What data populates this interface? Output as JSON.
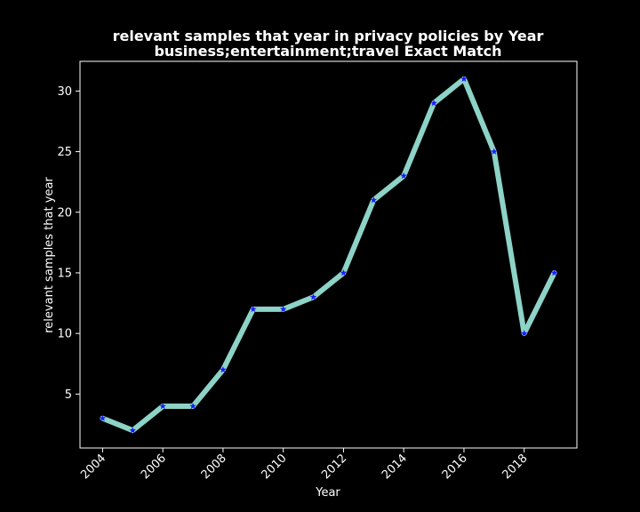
{
  "chart_data": {
    "type": "line",
    "title": "relevant samples that year in privacy policies by Year",
    "subtitle": "business;entertainment;travel Exact Match",
    "xlabel": "Year",
    "ylabel": "relevant samples that year",
    "x": [
      2004,
      2005,
      2006,
      2007,
      2008,
      2009,
      2010,
      2011,
      2012,
      2013,
      2014,
      2015,
      2016,
      2017,
      2018,
      2019
    ],
    "series": [
      {
        "values": [
          3,
          2,
          4,
          4,
          7,
          12,
          12,
          13,
          15,
          21,
          23,
          29,
          31,
          25,
          10,
          15
        ]
      }
    ],
    "xticks": [
      2004,
      2006,
      2008,
      2010,
      2012,
      2014,
      2016,
      2018
    ],
    "yticks": [
      5,
      10,
      15,
      20,
      25,
      30
    ],
    "xlim": [
      2003.25,
      2019.75
    ],
    "ylim": [
      0.55,
      32.45
    ],
    "grid": false,
    "colors": {
      "background": "#000000",
      "line": "#8dd3c7",
      "marker": "#1a1aff",
      "frame": "#ffffff",
      "text": "#ffffff"
    }
  }
}
